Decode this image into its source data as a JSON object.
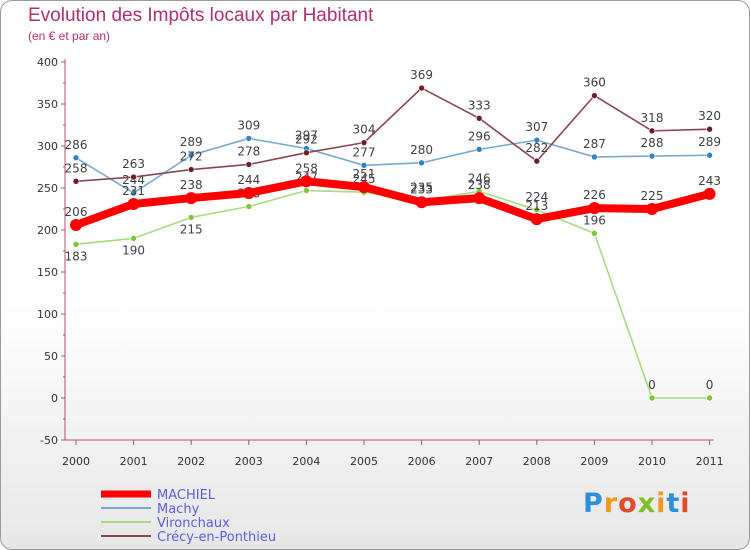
{
  "chart_data": {
    "type": "line",
    "title": "Evolution des Impôts locaux par Habitant",
    "subtitle": "(en € et par an)",
    "xlabel": "",
    "ylabel": "",
    "categories": [
      "2000",
      "2001",
      "2002",
      "2003",
      "2004",
      "2005",
      "2006",
      "2007",
      "2008",
      "2009",
      "2010",
      "2011"
    ],
    "yticks": [
      -50,
      0,
      50,
      100,
      150,
      200,
      250,
      300,
      350,
      400
    ],
    "ylim": [
      -50,
      400
    ],
    "grid": false,
    "legend_position": "bottom-left",
    "series": [
      {
        "name": "Machy",
        "color": "#7aa9cf",
        "marker": "#2f84c5",
        "values": [
          286,
          244,
          289,
          309,
          297,
          277,
          280,
          296,
          307,
          287,
          288,
          289
        ],
        "labels": [
          "286",
          "244",
          "289",
          "309",
          "297",
          "277",
          "280",
          "296",
          "307",
          "287",
          "288",
          "289"
        ]
      },
      {
        "name": "Vironchaux",
        "color": "#a8dc7e",
        "marker": "#7cc63a",
        "values": [
          183,
          190,
          215,
          228,
          247,
          245,
          235,
          246,
          224,
          196,
          0,
          0
        ],
        "labels": [
          "183",
          "190",
          "215",
          "228",
          "247",
          "245",
          "235",
          "246",
          "224",
          "196",
          "0",
          "0"
        ]
      },
      {
        "name": "Crécy-en-Ponthieu",
        "color": "#8a4650",
        "marker": "#6b1e28",
        "values": [
          258,
          263,
          272,
          278,
          292,
          304,
          369,
          333,
          282,
          360,
          318,
          320
        ],
        "labels": [
          "258",
          "263",
          "272",
          "278",
          "292",
          "304",
          "369",
          "333",
          "282",
          "360",
          "318",
          "320"
        ]
      },
      {
        "name": "MACHIEL",
        "color": "#ff0000",
        "marker": "#ff0000",
        "values": [
          206,
          231,
          238,
          244,
          258,
          251,
          233,
          238,
          213,
          226,
          225,
          243
        ],
        "labels": [
          "206",
          "231",
          "238",
          "244",
          "258",
          "251",
          "233",
          "238",
          "213",
          "226",
          "225",
          "243"
        ]
      }
    ],
    "legend": [
      {
        "name": "MACHIEL",
        "color": "#ff0000",
        "width": 7
      },
      {
        "name": "Machy",
        "color": "#7aa9cf",
        "width": 2
      },
      {
        "name": "Vironchaux",
        "color": "#a8dc7e",
        "width": 2
      },
      {
        "name": "Crécy-en-Ponthieu",
        "color": "#8a4650",
        "width": 2
      }
    ]
  },
  "logo": {
    "text": "Proxiti"
  }
}
